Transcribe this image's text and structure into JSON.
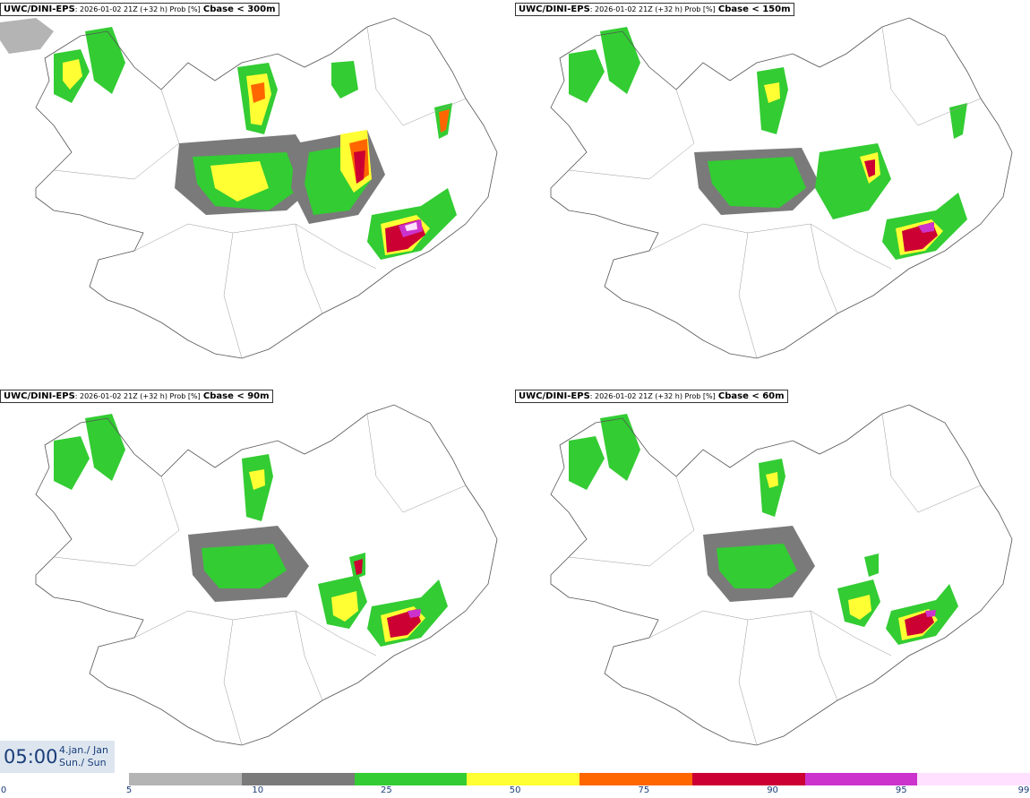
{
  "panels": [
    {
      "model": "UWC/DINI-EPS",
      "meta": ": 2026-01-02 21Z (+32 h) Prob [%]",
      "variable": "Cbase < 300m"
    },
    {
      "model": "UWC/DINI-EPS",
      "meta": ": 2026-01-02 21Z (+32 h) Prob [%]",
      "variable": "Cbase < 150m"
    },
    {
      "model": "UWC/DINI-EPS",
      "meta": ": 2026-01-02 21Z (+32 h) Prob [%]",
      "variable": "Cbase < 90m"
    },
    {
      "model": "UWC/DINI-EPS",
      "meta": ": 2026-01-02 21Z (+32 h) Prob [%]",
      "variable": "Cbase < 60m"
    }
  ],
  "valid_time": {
    "time": "05:00",
    "date_line1": "4.jan./ Jan",
    "date_line2": "Sun./ Sun"
  },
  "legend": {
    "colors": [
      "#b4b4b4",
      "#7a7a7a",
      "#33cc33",
      "#ffff33",
      "#ff6600",
      "#cc0033",
      "#cc33cc",
      "#ffe0ff"
    ],
    "ticks": [
      "0",
      "5",
      "10",
      "25",
      "50",
      "75",
      "90",
      "95",
      "99"
    ]
  }
}
